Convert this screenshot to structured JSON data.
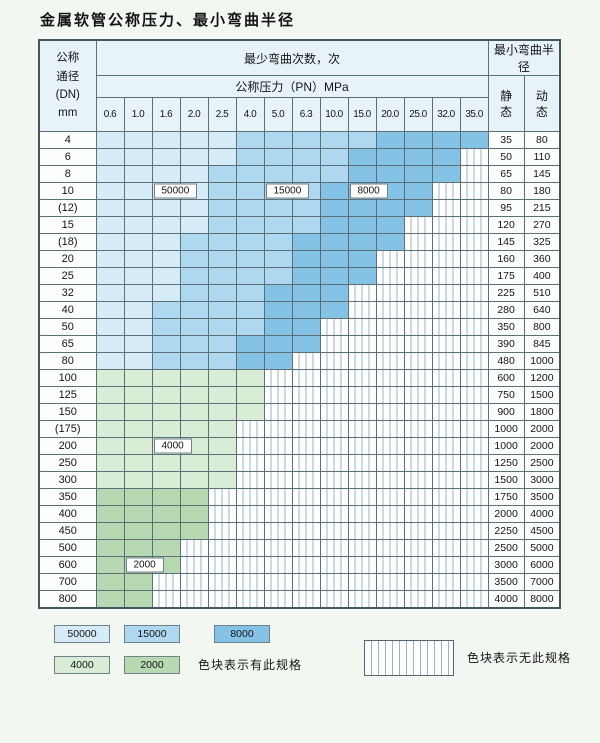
{
  "title": "金属软管公称压力、最小弯曲半径",
  "colors": {
    "b1": "#d6ebf8",
    "b2": "#aed8f0",
    "b3": "#84c2e6",
    "g1": "#d9ecd5",
    "g2": "#b6d9b1",
    "stripeLine": "#97b4c0",
    "headerBg": "#e8f3f9"
  },
  "header": {
    "dn_lines": [
      "公称",
      "通径",
      "(DN)",
      "mm"
    ],
    "cycles_label": "最少弯曲次数，次",
    "pressure_label": "公称压力（PN）MPa",
    "pressures": [
      "0.6",
      "1.0",
      "1.6",
      "2.0",
      "2.5",
      "4.0",
      "5.0",
      "6.3",
      "10.0",
      "15.0",
      "20.0",
      "25.0",
      "32.0",
      "35.0"
    ],
    "radius_label": "最小弯曲半径",
    "static_label": "静 态",
    "dynamic_label": "动 态"
  },
  "cell_classes": {
    "b1": "50000",
    "b2": "15000",
    "b3": "8000",
    "g1": "4000",
    "g2": "2000",
    "x": "无此规格"
  },
  "rows": [
    {
      "dn": "4",
      "cells": [
        "b1",
        "b1",
        "b1",
        "b1",
        "b1",
        "b2",
        "b2",
        "b2",
        "b2",
        "b2",
        "b3",
        "b3",
        "b3",
        "b3"
      ],
      "static": "35",
      "dynamic": "80"
    },
    {
      "dn": "6",
      "cells": [
        "b1",
        "b1",
        "b1",
        "b1",
        "b1",
        "b2",
        "b2",
        "b2",
        "b2",
        "b3",
        "b3",
        "b3",
        "b3",
        "x"
      ],
      "static": "50",
      "dynamic": "110"
    },
    {
      "dn": "8",
      "cells": [
        "b1",
        "b1",
        "b1",
        "b1",
        "b2",
        "b2",
        "b2",
        "b2",
        "b2",
        "b3",
        "b3",
        "b3",
        "b3",
        "x"
      ],
      "static": "65",
      "dynamic": "145"
    },
    {
      "dn": "10",
      "cells": [
        "b1",
        "b1",
        "b1",
        "b1",
        "b2",
        "b2",
        "b2",
        "b2",
        "b3",
        "b3",
        "b3",
        "b3",
        "x",
        "x"
      ],
      "static": "80",
      "dynamic": "180"
    },
    {
      "dn": "(12)",
      "cells": [
        "b1",
        "b1",
        "b1",
        "b1",
        "b2",
        "b2",
        "b2",
        "b2",
        "b3",
        "b3",
        "b3",
        "b3",
        "x",
        "x"
      ],
      "static": "95",
      "dynamic": "215"
    },
    {
      "dn": "15",
      "cells": [
        "b1",
        "b1",
        "b1",
        "b1",
        "b2",
        "b2",
        "b2",
        "b2",
        "b3",
        "b3",
        "b3",
        "x",
        "x",
        "x"
      ],
      "static": "120",
      "dynamic": "270"
    },
    {
      "dn": "(18)",
      "cells": [
        "b1",
        "b1",
        "b1",
        "b2",
        "b2",
        "b2",
        "b2",
        "b3",
        "b3",
        "b3",
        "b3",
        "x",
        "x",
        "x"
      ],
      "static": "145",
      "dynamic": "325"
    },
    {
      "dn": "20",
      "cells": [
        "b1",
        "b1",
        "b1",
        "b2",
        "b2",
        "b2",
        "b2",
        "b3",
        "b3",
        "b3",
        "x",
        "x",
        "x",
        "x"
      ],
      "static": "160",
      "dynamic": "360"
    },
    {
      "dn": "25",
      "cells": [
        "b1",
        "b1",
        "b1",
        "b2",
        "b2",
        "b2",
        "b2",
        "b3",
        "b3",
        "b3",
        "x",
        "x",
        "x",
        "x"
      ],
      "static": "175",
      "dynamic": "400"
    },
    {
      "dn": "32",
      "cells": [
        "b1",
        "b1",
        "b1",
        "b2",
        "b2",
        "b2",
        "b3",
        "b3",
        "b3",
        "x",
        "x",
        "x",
        "x",
        "x"
      ],
      "static": "225",
      "dynamic": "510"
    },
    {
      "dn": "40",
      "cells": [
        "b1",
        "b1",
        "b2",
        "b2",
        "b2",
        "b2",
        "b3",
        "b3",
        "b3",
        "x",
        "x",
        "x",
        "x",
        "x"
      ],
      "static": "280",
      "dynamic": "640"
    },
    {
      "dn": "50",
      "cells": [
        "b1",
        "b1",
        "b2",
        "b2",
        "b2",
        "b2",
        "b3",
        "b3",
        "x",
        "x",
        "x",
        "x",
        "x",
        "x"
      ],
      "static": "350",
      "dynamic": "800"
    },
    {
      "dn": "65",
      "cells": [
        "b1",
        "b1",
        "b2",
        "b2",
        "b2",
        "b3",
        "b3",
        "b3",
        "x",
        "x",
        "x",
        "x",
        "x",
        "x"
      ],
      "static": "390",
      "dynamic": "845"
    },
    {
      "dn": "80",
      "cells": [
        "b1",
        "b1",
        "b2",
        "b2",
        "b2",
        "b3",
        "b3",
        "x",
        "x",
        "x",
        "x",
        "x",
        "x",
        "x"
      ],
      "static": "480",
      "dynamic": "1000"
    },
    {
      "dn": "100",
      "cells": [
        "g1",
        "g1",
        "g1",
        "g1",
        "g1",
        "g1",
        "x",
        "x",
        "x",
        "x",
        "x",
        "x",
        "x",
        "x"
      ],
      "static": "600",
      "dynamic": "1200"
    },
    {
      "dn": "125",
      "cells": [
        "g1",
        "g1",
        "g1",
        "g1",
        "g1",
        "g1",
        "x",
        "x",
        "x",
        "x",
        "x",
        "x",
        "x",
        "x"
      ],
      "static": "750",
      "dynamic": "1500"
    },
    {
      "dn": "150",
      "cells": [
        "g1",
        "g1",
        "g1",
        "g1",
        "g1",
        "g1",
        "x",
        "x",
        "x",
        "x",
        "x",
        "x",
        "x",
        "x"
      ],
      "static": "900",
      "dynamic": "1800"
    },
    {
      "dn": "(175)",
      "cells": [
        "g1",
        "g1",
        "g1",
        "g1",
        "g1",
        "x",
        "x",
        "x",
        "x",
        "x",
        "x",
        "x",
        "x",
        "x"
      ],
      "static": "1000",
      "dynamic": "2000"
    },
    {
      "dn": "200",
      "cells": [
        "g1",
        "g1",
        "g1",
        "g1",
        "g1",
        "x",
        "x",
        "x",
        "x",
        "x",
        "x",
        "x",
        "x",
        "x"
      ],
      "static": "1000",
      "dynamic": "2000"
    },
    {
      "dn": "250",
      "cells": [
        "g1",
        "g1",
        "g1",
        "g1",
        "g1",
        "x",
        "x",
        "x",
        "x",
        "x",
        "x",
        "x",
        "x",
        "x"
      ],
      "static": "1250",
      "dynamic": "2500"
    },
    {
      "dn": "300",
      "cells": [
        "g1",
        "g1",
        "g1",
        "g1",
        "g1",
        "x",
        "x",
        "x",
        "x",
        "x",
        "x",
        "x",
        "x",
        "x"
      ],
      "static": "1500",
      "dynamic": "3000"
    },
    {
      "dn": "350",
      "cells": [
        "g2",
        "g2",
        "g2",
        "g2",
        "x",
        "x",
        "x",
        "x",
        "x",
        "x",
        "x",
        "x",
        "x",
        "x"
      ],
      "static": "1750",
      "dynamic": "3500"
    },
    {
      "dn": "400",
      "cells": [
        "g2",
        "g2",
        "g2",
        "g2",
        "x",
        "x",
        "x",
        "x",
        "x",
        "x",
        "x",
        "x",
        "x",
        "x"
      ],
      "static": "2000",
      "dynamic": "4000"
    },
    {
      "dn": "450",
      "cells": [
        "g2",
        "g2",
        "g2",
        "g2",
        "x",
        "x",
        "x",
        "x",
        "x",
        "x",
        "x",
        "x",
        "x",
        "x"
      ],
      "static": "2250",
      "dynamic": "4500"
    },
    {
      "dn": "500",
      "cells": [
        "g2",
        "g2",
        "g2",
        "x",
        "x",
        "x",
        "x",
        "x",
        "x",
        "x",
        "x",
        "x",
        "x",
        "x"
      ],
      "static": "2500",
      "dynamic": "5000"
    },
    {
      "dn": "600",
      "cells": [
        "g2",
        "g2",
        "g2",
        "x",
        "x",
        "x",
        "x",
        "x",
        "x",
        "x",
        "x",
        "x",
        "x",
        "x"
      ],
      "static": "3000",
      "dynamic": "6000"
    },
    {
      "dn": "700",
      "cells": [
        "g2",
        "g2",
        "x",
        "x",
        "x",
        "x",
        "x",
        "x",
        "x",
        "x",
        "x",
        "x",
        "x",
        "x"
      ],
      "static": "3500",
      "dynamic": "7000"
    },
    {
      "dn": "800",
      "cells": [
        "g2",
        "g2",
        "x",
        "x",
        "x",
        "x",
        "x",
        "x",
        "x",
        "x",
        "x",
        "x",
        "x",
        "x"
      ],
      "static": "4000",
      "dynamic": "8000"
    }
  ],
  "overlays": [
    {
      "dn": "10",
      "col": 3,
      "label": "50000"
    },
    {
      "dn": "10",
      "col": 7,
      "label": "15000"
    },
    {
      "dn": "10",
      "col": 10,
      "label": "8000"
    },
    {
      "dn": "200",
      "col": 3,
      "label": "4000"
    },
    {
      "dn": "600",
      "col": 2,
      "label": "2000"
    }
  ],
  "legend": {
    "items": [
      {
        "label": "50000",
        "class": "b1"
      },
      {
        "label": "15000",
        "class": "b2"
      },
      {
        "label": "8000",
        "class": "b3"
      },
      {
        "label": "4000",
        "class": "g1"
      },
      {
        "label": "2000",
        "class": "g2"
      }
    ],
    "has_spec_note": "色块表示有此规格",
    "no_spec_note": "色块表示无此规格"
  }
}
